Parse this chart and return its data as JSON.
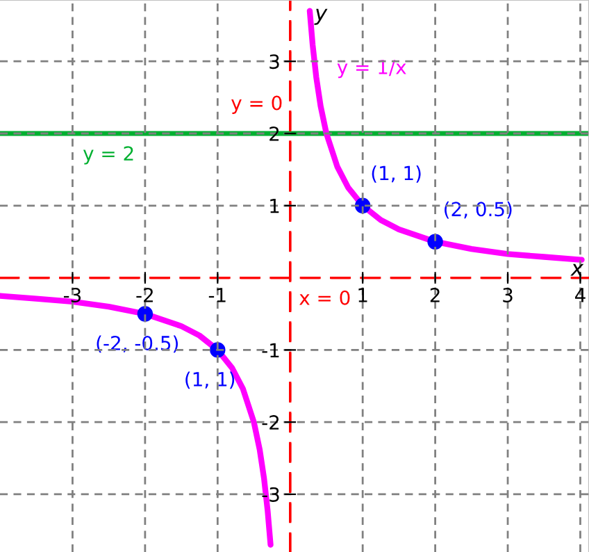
{
  "chart_data": {
    "type": "line",
    "xlabel": "x",
    "ylabel": "y",
    "xlim": [
      -4,
      4.12
    ],
    "ylim": [
      -3.8,
      3.85
    ],
    "xticks": [
      -3,
      -2,
      -1,
      1,
      2,
      3,
      4
    ],
    "yticks": [
      -3,
      -2,
      -1,
      1,
      2,
      3
    ],
    "grid": true,
    "marker": "none",
    "line_style": "solid",
    "series": [
      {
        "name": "y = 1/x",
        "color": "#ff00ff",
        "x": [
          -4,
          -3.5,
          -3,
          -2.5,
          -2,
          -1.5,
          -1.25,
          -1,
          -0.8,
          -0.65,
          -0.5,
          -0.42,
          -0.36,
          -0.31,
          -0.27,
          null,
          0.27,
          0.31,
          0.36,
          0.42,
          0.5,
          0.65,
          0.8,
          1,
          1.25,
          1.5,
          2,
          2.5,
          3,
          3.5,
          4,
          4.02
        ],
        "values": [
          -0.25,
          -0.29,
          -0.33,
          -0.4,
          -0.5,
          -0.67,
          -0.8,
          -1,
          -1.25,
          -1.54,
          -2,
          -2.38,
          -2.78,
          -3.23,
          -3.7,
          null,
          3.7,
          3.23,
          2.78,
          2.38,
          2,
          1.54,
          1.25,
          1,
          0.8,
          0.67,
          0.5,
          0.4,
          0.33,
          0.29,
          0.25,
          0.25
        ]
      },
      {
        "type": "scatter",
        "color": "#0000ff",
        "marker": "circle",
        "x": [
          -2,
          -1,
          1,
          2
        ],
        "values": [
          -0.5,
          -1,
          1,
          0.5
        ],
        "value_labels": [
          "(-2, -0.5)",
          "(1, 1)",
          "(1, 1)",
          "(2, 0.5)"
        ]
      }
    ],
    "ref_lines": [
      {
        "axis": "y",
        "value": 0,
        "label": "x = 0",
        "color": "#ff0000",
        "line_style": "dashed"
      },
      {
        "axis": "x",
        "value": 0,
        "label": "y = 0",
        "color": "#ff0000",
        "line_style": "dashed"
      },
      {
        "axis": "y",
        "value": 2,
        "label": "y = 2",
        "color": "#00b030",
        "line_style": "solid"
      }
    ]
  }
}
